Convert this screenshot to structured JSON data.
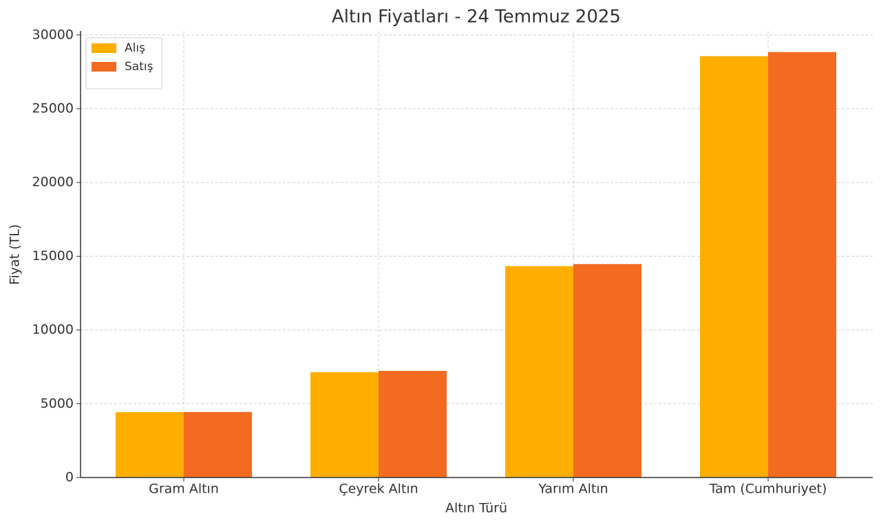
{
  "chart_data": {
    "type": "bar",
    "title": "Altın Fiyatları - 24 Temmuz 2025",
    "x_label": "Altın Türü",
    "y_label": "Fiyat (TL)",
    "categories": [
      "Gram Altın",
      "Çeyrek Altın",
      "Yarım Altın",
      "Tam (Cumhuriyet)"
    ],
    "series": [
      {
        "name": "Alış",
        "color": "#ffae00",
        "values": [
          4430,
          7140,
          14330,
          28560
        ]
      },
      {
        "name": "Satış",
        "color": "#f26b21",
        "values": [
          4440,
          7230,
          14470,
          28840
        ]
      }
    ],
    "ylim": [
      0,
      30270
    ],
    "yticks": [
      0,
      5000,
      10000,
      15000,
      20000,
      25000,
      30000
    ],
    "grid": true,
    "legend": "upper-left"
  }
}
